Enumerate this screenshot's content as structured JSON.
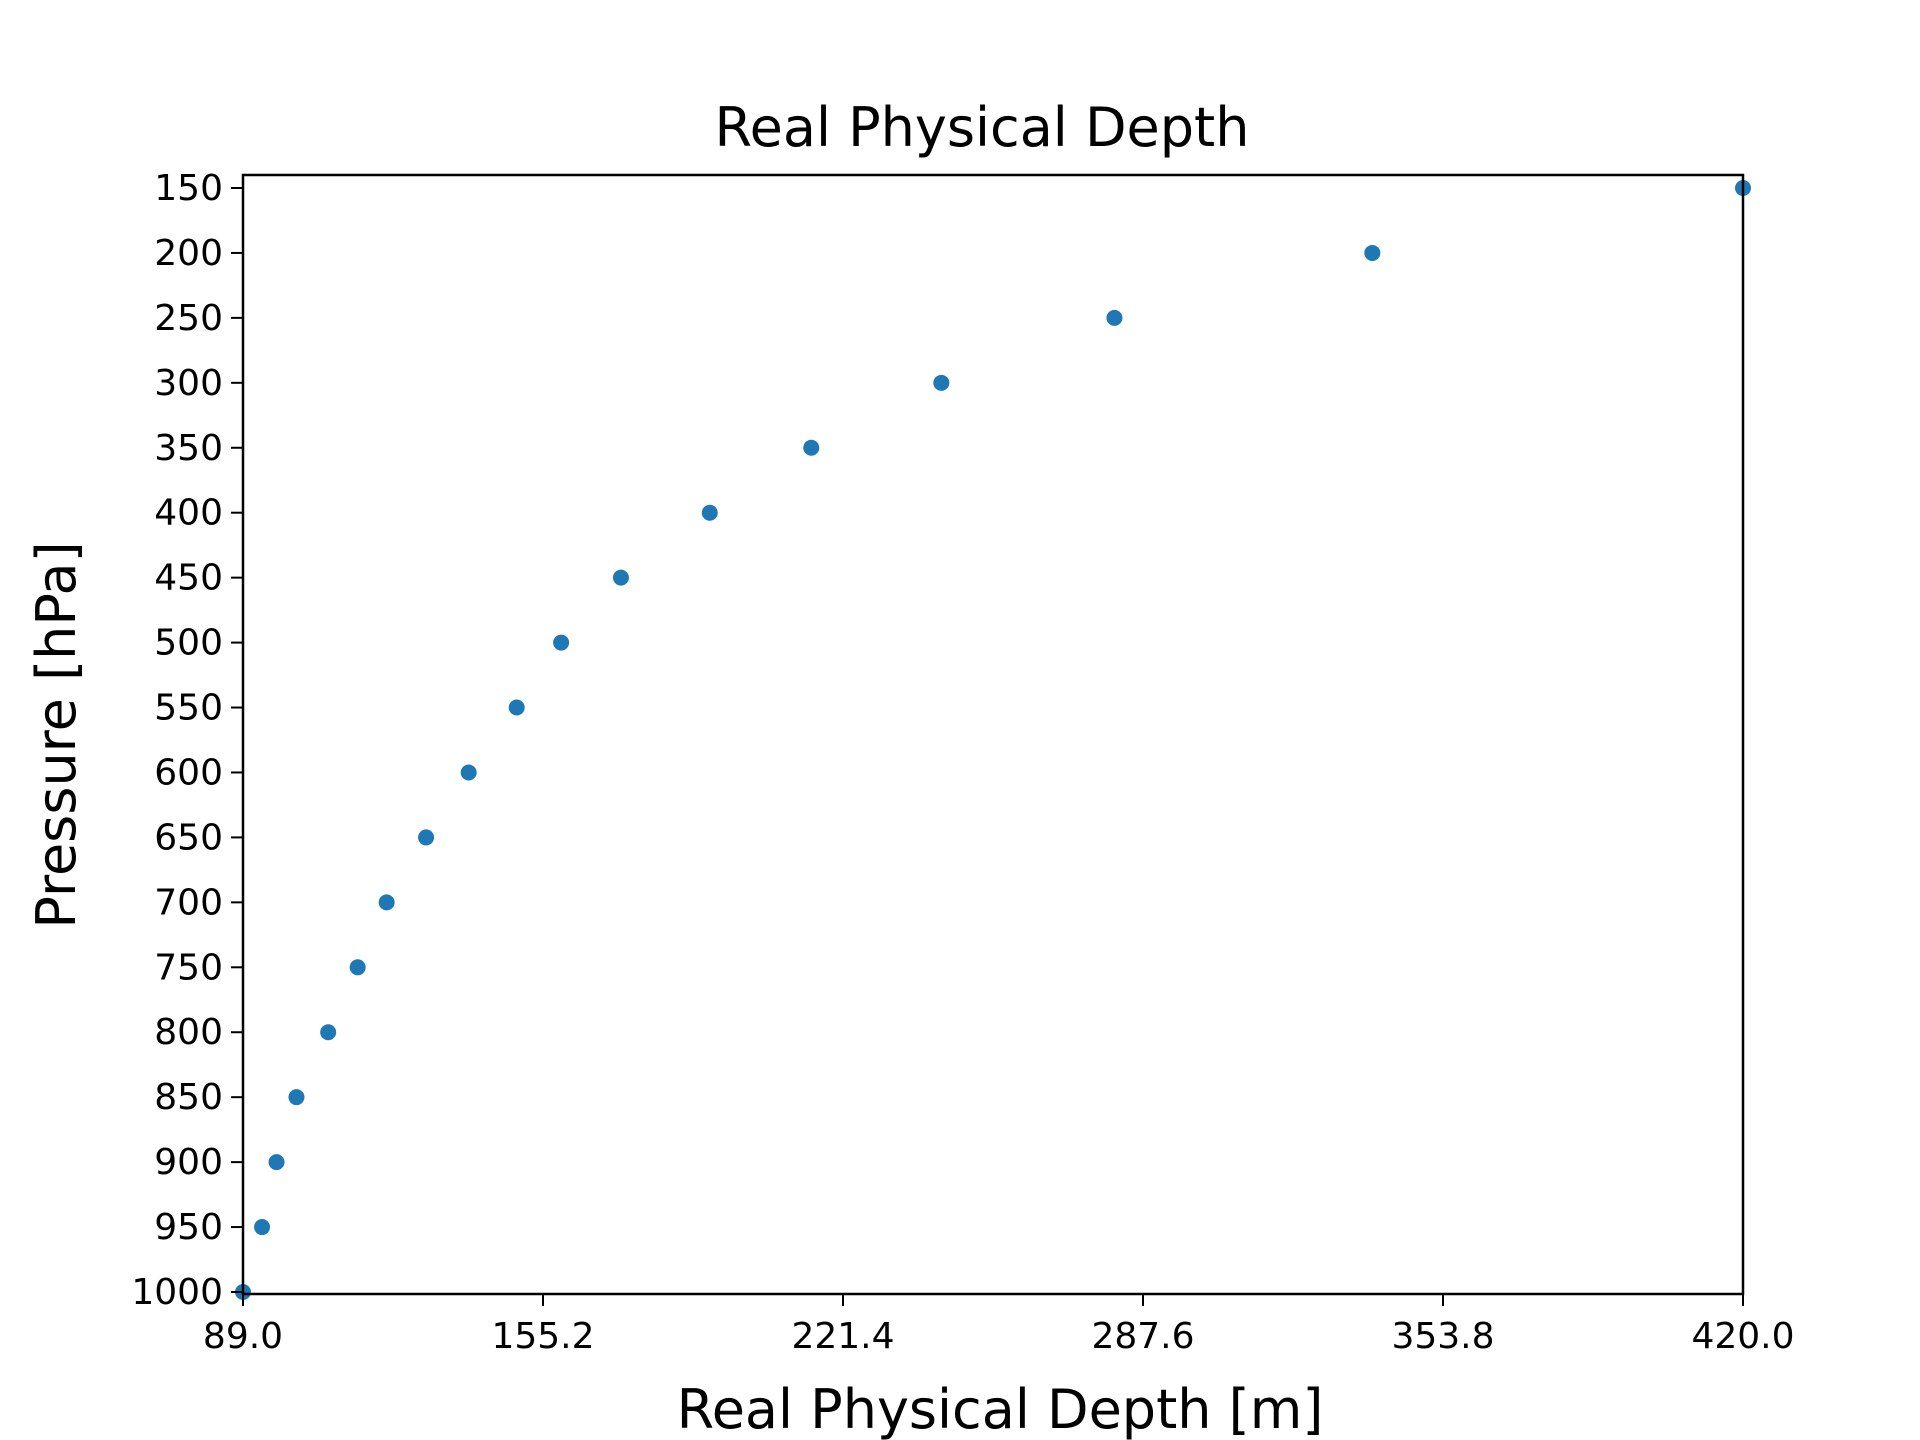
{
  "chart_data": {
    "type": "scatter",
    "title": "Real Physical Depth",
    "xlabel": "Real Physical Depth [m]",
    "ylabel": "Pressure [hPa]",
    "xlim": [
      89.0,
      420.0
    ],
    "ylim": [
      1000,
      150
    ],
    "y_inverted": true,
    "grid": false,
    "x_ticks": [
      "89.0",
      "155.2",
      "221.4",
      "287.6",
      "353.8",
      "420.0"
    ],
    "y_ticks": [
      "150",
      "200",
      "250",
      "300",
      "350",
      "400",
      "450",
      "500",
      "550",
      "600",
      "650",
      "700",
      "750",
      "800",
      "850",
      "900",
      "950",
      "1000"
    ],
    "marker_color": "#1f77b4",
    "series": [
      {
        "x": [
          89.0,
          93.2,
          96.4,
          100.8,
          107.8,
          114.3,
          120.7,
          129.4,
          138.8,
          149.4,
          159.2,
          172.4,
          192.0,
          214.4,
          243.1,
          281.3,
          338.2,
          420.0
        ],
        "y": [
          1000,
          950,
          900,
          850,
          800,
          750,
          700,
          650,
          600,
          550,
          500,
          450,
          400,
          350,
          300,
          250,
          200,
          150
        ]
      }
    ]
  }
}
